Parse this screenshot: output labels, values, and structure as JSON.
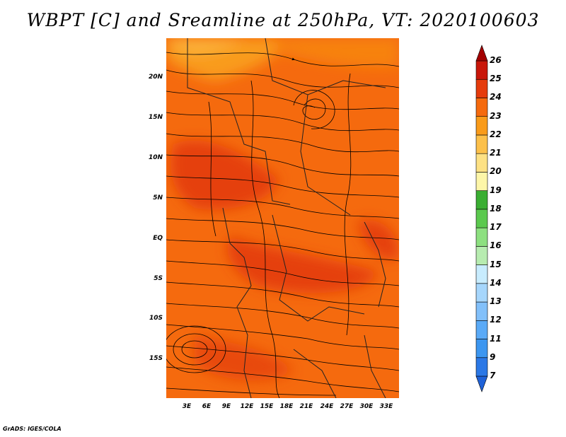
{
  "title": "WBPT [C] and Sreamline at 250hPa, VT: 2020100603",
  "credit": "GrADS: IGES/COLA",
  "map": {
    "variable": "WBPT",
    "unit": "C",
    "level": "250hPa",
    "valid_time": "2020100603",
    "overlay": "Streamline",
    "lat_labels": [
      "20N",
      "15N",
      "10N",
      "5N",
      "EQ",
      "5S",
      "10S",
      "15S"
    ],
    "lon_labels": [
      "3E",
      "6E",
      "9E",
      "12E",
      "15E",
      "18E",
      "21E",
      "24E",
      "27E",
      "30E",
      "33E"
    ]
  },
  "colorbar": {
    "labels": [
      "7",
      "9",
      "11",
      "12",
      "13",
      "14",
      "15",
      "16",
      "17",
      "18",
      "19",
      "20",
      "21",
      "22",
      "23",
      "24",
      "25",
      "26"
    ],
    "colors": [
      "#1f62d8",
      "#2b78e6",
      "#3c96f0",
      "#5aaaf7",
      "#82c0fa",
      "#a6d6fc",
      "#c8ecfe",
      "#b7ecb0",
      "#8de080",
      "#5bc94e",
      "#3aae32",
      "#fdf6a8",
      "#fde184",
      "#fcc04a",
      "#f99b1a",
      "#f56a0e",
      "#e53b0c",
      "#c9170a",
      "#a30000"
    ]
  }
}
